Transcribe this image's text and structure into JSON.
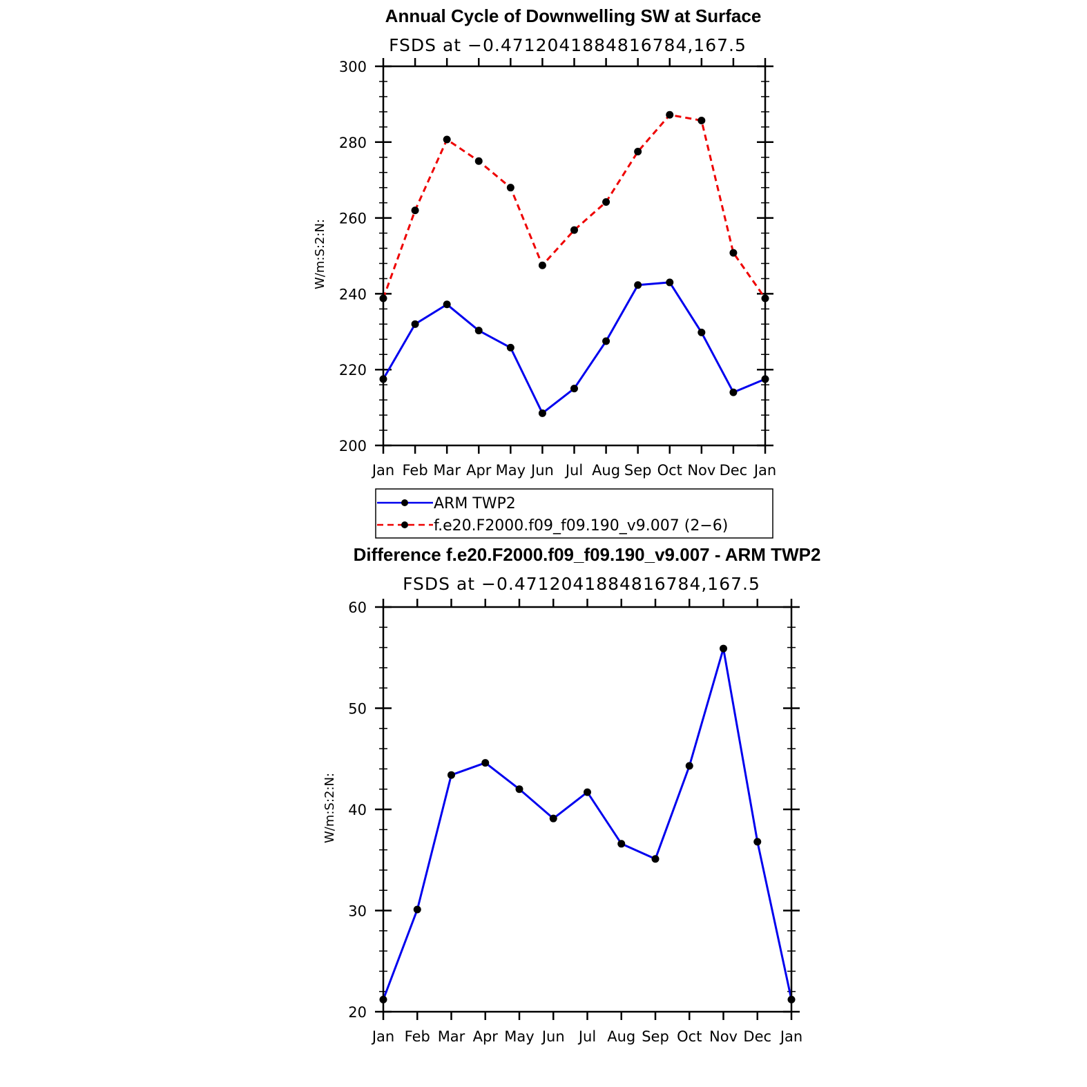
{
  "chart_data": [
    {
      "type": "line",
      "title": "Annual Cycle of Downwelling SW at Surface",
      "subtitle": "FSDS at −0.4712041884816784,167.5",
      "ylabel": "W/m:S:2:N:",
      "xlabel": "",
      "categories": [
        "Jan",
        "Feb",
        "Mar",
        "Apr",
        "May",
        "Jun",
        "Jul",
        "Aug",
        "Sep",
        "Oct",
        "Nov",
        "Dec",
        "Jan"
      ],
      "ylim": [
        200,
        300
      ],
      "yticks": [
        200,
        220,
        240,
        260,
        280,
        300
      ],
      "grid": false,
      "legend_position": "bottom",
      "series": [
        {
          "name": "ARM TWP2",
          "color": "#0000ee",
          "dash": "solid",
          "values": [
            217.5,
            232,
            237.2,
            230.3,
            225.8,
            208.5,
            215,
            227.5,
            242.3,
            243,
            229.8,
            214,
            217.5
          ]
        },
        {
          "name": "f.e20.F2000.f09_f09.190_v9.007 (2−6)",
          "color": "#ee0000",
          "dash": "dashed",
          "values": [
            238.8,
            262,
            280.7,
            275,
            268,
            247.5,
            256.8,
            264.2,
            277.5,
            287.2,
            285.7,
            250.8,
            238.8
          ]
        }
      ]
    },
    {
      "type": "line",
      "title": "Difference f.e20.F2000.f09_f09.190_v9.007 - ARM TWP2",
      "subtitle": "FSDS at −0.4712041884816784,167.5",
      "ylabel": "W/m:S:2:N:",
      "xlabel": "",
      "categories": [
        "Jan",
        "Feb",
        "Mar",
        "Apr",
        "May",
        "Jun",
        "Jul",
        "Aug",
        "Sep",
        "Oct",
        "Nov",
        "Dec",
        "Jan"
      ],
      "ylim": [
        20,
        60
      ],
      "yticks": [
        20,
        30,
        40,
        50,
        60
      ],
      "grid": false,
      "series": [
        {
          "color": "#0000ee",
          "dash": "solid",
          "values": [
            21.2,
            30.1,
            43.4,
            44.6,
            42,
            39.1,
            41.7,
            36.6,
            35.1,
            44.3,
            55.9,
            36.8,
            21.2
          ]
        }
      ]
    }
  ]
}
